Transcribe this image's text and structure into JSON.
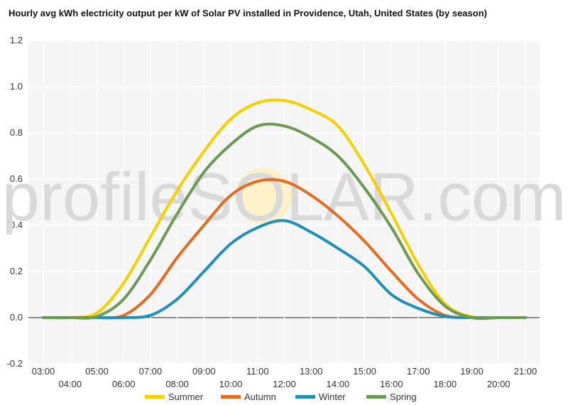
{
  "chart_data": {
    "type": "line",
    "title": "Hourly avg kWh electricity output per kW of Solar PV installed in Providence, Utah, United States (by season)",
    "watermark": "profileSOLAR.com",
    "xlabel": "",
    "ylabel": "",
    "x_ticks": [
      "03:00",
      "04:00",
      "05:00",
      "06:00",
      "07:00",
      "08:00",
      "09:00",
      "10:00",
      "11:00",
      "12:00",
      "13:00",
      "14:00",
      "15:00",
      "16:00",
      "17:00",
      "18:00",
      "19:00",
      "20:00",
      "21:00"
    ],
    "x_range": [
      3,
      21
    ],
    "y_ticks": [
      "1.2",
      "1.0",
      "0.8",
      "0.6",
      "0.4",
      "0.2",
      "0.0",
      "-0.2"
    ],
    "ylim": [
      -0.2,
      1.2
    ],
    "grid": true,
    "legend_position": "bottom",
    "x": [
      3,
      4,
      5,
      6,
      7,
      8,
      9,
      10,
      11,
      12,
      13,
      14,
      15,
      16,
      17,
      18,
      19,
      20,
      21
    ],
    "series": [
      {
        "name": "Summer",
        "color": "#f5d000",
        "values": [
          0,
          0,
          0.02,
          0.15,
          0.35,
          0.55,
          0.72,
          0.86,
          0.93,
          0.94,
          0.9,
          0.83,
          0.66,
          0.45,
          0.23,
          0.06,
          0.003,
          0,
          0
        ]
      },
      {
        "name": "Autumn",
        "color": "#e36c1e",
        "values": [
          0,
          0,
          0,
          0.01,
          0.1,
          0.26,
          0.4,
          0.53,
          0.59,
          0.59,
          0.53,
          0.44,
          0.33,
          0.2,
          0.08,
          0.01,
          0,
          0,
          0
        ]
      },
      {
        "name": "Winter",
        "color": "#1f8fba",
        "values": [
          0,
          0,
          0,
          0,
          0.01,
          0.08,
          0.2,
          0.32,
          0.39,
          0.42,
          0.37,
          0.3,
          0.22,
          0.1,
          0.04,
          0.005,
          0,
          0,
          0
        ]
      },
      {
        "name": "Spring",
        "color": "#6b9a52",
        "values": [
          0,
          0,
          0.005,
          0.08,
          0.25,
          0.45,
          0.63,
          0.75,
          0.83,
          0.83,
          0.78,
          0.7,
          0.56,
          0.39,
          0.19,
          0.05,
          0,
          0,
          0
        ]
      }
    ]
  }
}
